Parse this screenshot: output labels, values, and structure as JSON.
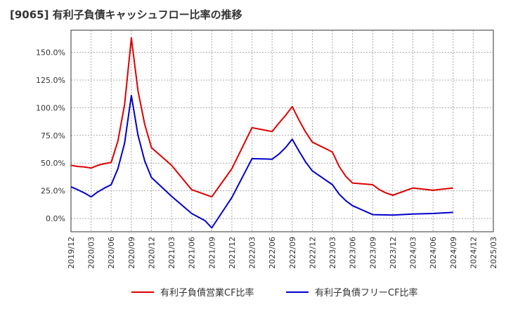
{
  "chart_data": {
    "type": "line",
    "title": "[9065]  有利子負債キャッシュフロー比率の推移",
    "xlabel": "",
    "ylabel": "",
    "ylim": [
      -12,
      170
    ],
    "yticks": [
      0,
      25,
      50,
      75,
      100,
      125,
      150
    ],
    "ytick_labels": [
      "0.0%",
      "25.0%",
      "50.0%",
      "75.0%",
      "100.0%",
      "125.0%",
      "150.0%"
    ],
    "xlim": [
      "2019/12",
      "2025/03"
    ],
    "xtick_labels": [
      "2019/12",
      "2020/03",
      "2020/06",
      "2020/09",
      "2020/12",
      "2021/03",
      "2021/06",
      "2021/09",
      "2021/12",
      "2022/03",
      "2022/06",
      "2022/09",
      "2022/12",
      "2023/03",
      "2023/06",
      "2023/09",
      "2023/12",
      "2024/03",
      "2024/06",
      "2024/09",
      "2024/12",
      "2025/03"
    ],
    "grid": true,
    "legend_position": "bottom",
    "series": [
      {
        "name": "有利子負債営業CF比率",
        "color": "#dd0000",
        "points": [
          [
            "2019/12",
            48
          ],
          [
            "2020/01",
            47
          ],
          [
            "2020/02",
            46.5
          ],
          [
            "2020/03",
            45.5
          ],
          [
            "2020/04",
            48
          ],
          [
            "2020/05",
            49.5
          ],
          [
            "2020/06",
            50.5
          ],
          [
            "2020/07",
            70
          ],
          [
            "2020/08",
            103
          ],
          [
            "2020/09",
            163
          ],
          [
            "2020/10",
            115
          ],
          [
            "2020/11",
            85
          ],
          [
            "2020/12",
            64
          ],
          [
            "2021/03",
            48
          ],
          [
            "2021/06",
            26
          ],
          [
            "2021/09",
            19.5
          ],
          [
            "2021/12",
            45
          ],
          [
            "2022/03",
            82
          ],
          [
            "2022/06",
            78.5
          ],
          [
            "2022/07",
            86
          ],
          [
            "2022/08",
            93
          ],
          [
            "2022/09",
            101
          ],
          [
            "2022/10",
            89
          ],
          [
            "2022/11",
            78
          ],
          [
            "2022/12",
            69
          ],
          [
            "2023/03",
            60
          ],
          [
            "2023/04",
            47
          ],
          [
            "2023/05",
            38
          ],
          [
            "2023/06",
            32
          ],
          [
            "2023/09",
            30.5
          ],
          [
            "2023/10",
            26
          ],
          [
            "2023/11",
            23
          ],
          [
            "2023/12",
            21
          ],
          [
            "2024/03",
            27.5
          ],
          [
            "2024/06",
            25.5
          ],
          [
            "2024/09",
            27.5
          ]
        ]
      },
      {
        "name": "有利子負債フリーCF比率",
        "color": "#0000cc",
        "points": [
          [
            "2019/12",
            28.5
          ],
          [
            "2020/01",
            26
          ],
          [
            "2020/02",
            23
          ],
          [
            "2020/03",
            19.5
          ],
          [
            "2020/04",
            24
          ],
          [
            "2020/05",
            27.5
          ],
          [
            "2020/06",
            30.5
          ],
          [
            "2020/07",
            45
          ],
          [
            "2020/08",
            68
          ],
          [
            "2020/09",
            111
          ],
          [
            "2020/10",
            75
          ],
          [
            "2020/11",
            52
          ],
          [
            "2020/12",
            37
          ],
          [
            "2021/03",
            20
          ],
          [
            "2021/06",
            4.5
          ],
          [
            "2021/08",
            -2
          ],
          [
            "2021/09",
            -8.5
          ],
          [
            "2021/12",
            19
          ],
          [
            "2022/03",
            54
          ],
          [
            "2022/06",
            53.5
          ],
          [
            "2022/07",
            58
          ],
          [
            "2022/08",
            64
          ],
          [
            "2022/09",
            71.5
          ],
          [
            "2022/10",
            61
          ],
          [
            "2022/11",
            51
          ],
          [
            "2022/12",
            43
          ],
          [
            "2023/03",
            30.5
          ],
          [
            "2023/04",
            22
          ],
          [
            "2023/05",
            16
          ],
          [
            "2023/06",
            11.5
          ],
          [
            "2023/09",
            3.5
          ],
          [
            "2023/12",
            3
          ],
          [
            "2024/03",
            4
          ],
          [
            "2024/06",
            4.5
          ],
          [
            "2024/09",
            5.5
          ]
        ]
      }
    ]
  }
}
